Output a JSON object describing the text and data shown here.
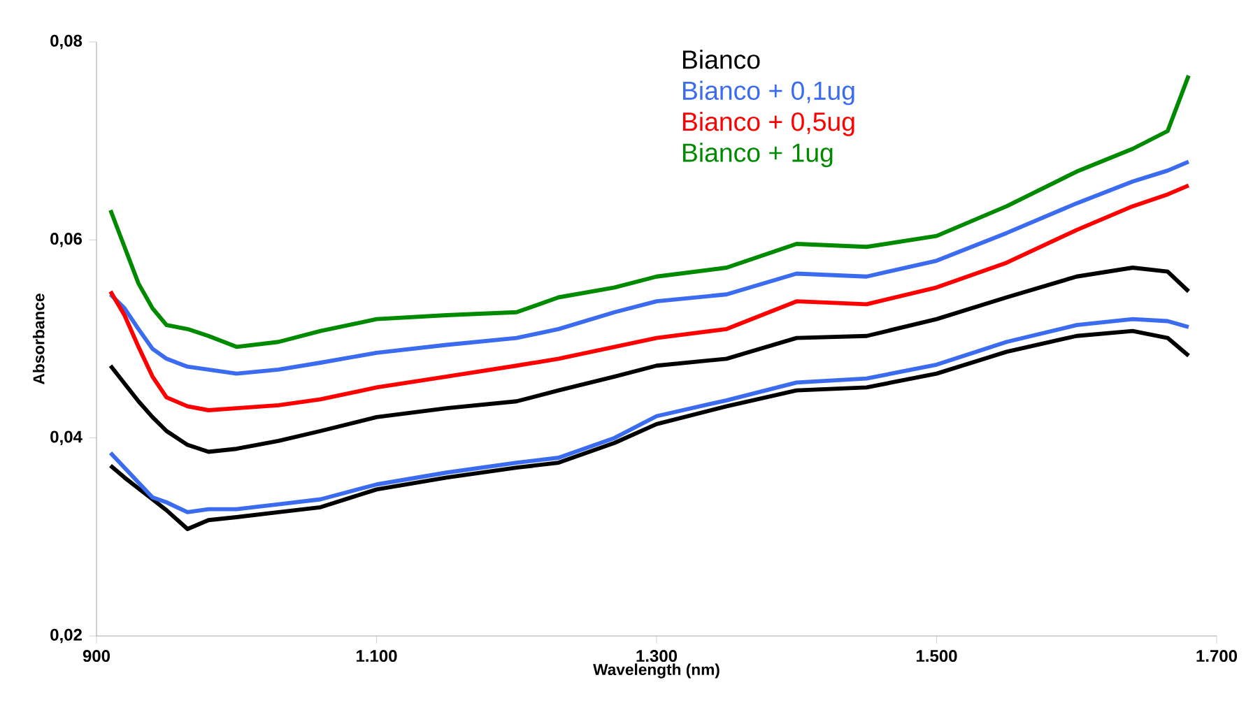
{
  "chart_data": {
    "type": "line",
    "xlabel": "Wavelength (nm)",
    "ylabel": "Absorbance",
    "x": [
      910,
      920,
      930,
      940,
      950,
      965,
      980,
      1000,
      1030,
      1060,
      1100,
      1150,
      1200,
      1230,
      1270,
      1300,
      1350,
      1400,
      1450,
      1500,
      1550,
      1600,
      1640,
      1665,
      1680
    ],
    "xlim": [
      900,
      1700
    ],
    "ylim": [
      0.02,
      0.08
    ],
    "xticks": [
      900,
      {
        "value": 1100,
        "label": "1.100"
      },
      {
        "value": 1300,
        "label": "1.300"
      },
      {
        "value": 1500,
        "label": "1.500"
      },
      {
        "value": 1700,
        "label": "1.700"
      }
    ],
    "yticks": [
      {
        "value": 0.02,
        "label": "0,02"
      },
      {
        "value": 0.04,
        "label": "0,04"
      },
      {
        "value": 0.06,
        "label": "0,06"
      },
      {
        "value": 0.08,
        "label": "0,08"
      }
    ],
    "legend": "top",
    "marker": "none",
    "line_style": "solid",
    "series": [
      {
        "name": "Bianco",
        "color": "#000000",
        "values": [
          0.0473,
          0.0455,
          0.0437,
          0.0421,
          0.0407,
          0.0393,
          0.0386,
          0.0389,
          0.0397,
          0.0407,
          0.0421,
          0.043,
          0.0437,
          0.0448,
          0.0462,
          0.0473,
          0.048,
          0.0501,
          0.0503,
          0.052,
          0.0542,
          0.0563,
          0.0572,
          0.0568,
          0.0548
        ]
      },
      {
        "name": "Bianco + 0,1ug",
        "color": "#3b6cf0",
        "values": [
          0.0545,
          0.0531,
          0.051,
          0.049,
          0.048,
          0.0472,
          0.0469,
          0.0465,
          0.0469,
          0.0476,
          0.0486,
          0.0494,
          0.0501,
          0.051,
          0.0527,
          0.0538,
          0.0545,
          0.0566,
          0.0563,
          0.0579,
          0.0607,
          0.0637,
          0.0659,
          0.067,
          0.0679
        ]
      },
      {
        "name": "Bianco + 0,5ug",
        "color": "#ff0000",
        "values": [
          0.0548,
          0.0524,
          0.0492,
          0.0462,
          0.0441,
          0.0432,
          0.0428,
          0.043,
          0.0433,
          0.0439,
          0.0451,
          0.0462,
          0.0473,
          0.048,
          0.0492,
          0.0501,
          0.051,
          0.0538,
          0.0535,
          0.0552,
          0.0577,
          0.061,
          0.0634,
          0.0646,
          0.0655
        ]
      },
      {
        "name": "Bianco + 1ug",
        "color": "#008a00",
        "values": [
          0.063,
          0.0593,
          0.0556,
          0.0531,
          0.0514,
          0.051,
          0.0503,
          0.0492,
          0.0497,
          0.0508,
          0.052,
          0.0524,
          0.0527,
          0.0542,
          0.0552,
          0.0563,
          0.0572,
          0.0596,
          0.0593,
          0.0604,
          0.0634,
          0.0669,
          0.0692,
          0.071,
          0.0766
        ]
      },
      {
        "color": "#000000",
        "values": [
          0.0372,
          0.036,
          0.0349,
          0.0338,
          0.0327,
          0.0308,
          0.0317,
          0.032,
          0.0325,
          0.033,
          0.0348,
          0.036,
          0.037,
          0.0375,
          0.0395,
          0.0414,
          0.0432,
          0.0448,
          0.0451,
          0.0465,
          0.0487,
          0.0503,
          0.0508,
          0.0501,
          0.0483
        ]
      },
      {
        "color": "#3b6cf0",
        "values": [
          0.0385,
          0.037,
          0.0355,
          0.034,
          0.0335,
          0.0325,
          0.0328,
          0.0328,
          0.0333,
          0.0338,
          0.0353,
          0.0365,
          0.0375,
          0.038,
          0.04,
          0.0422,
          0.0438,
          0.0456,
          0.046,
          0.0474,
          0.0497,
          0.0514,
          0.052,
          0.0518,
          0.0512
        ]
      }
    ]
  }
}
